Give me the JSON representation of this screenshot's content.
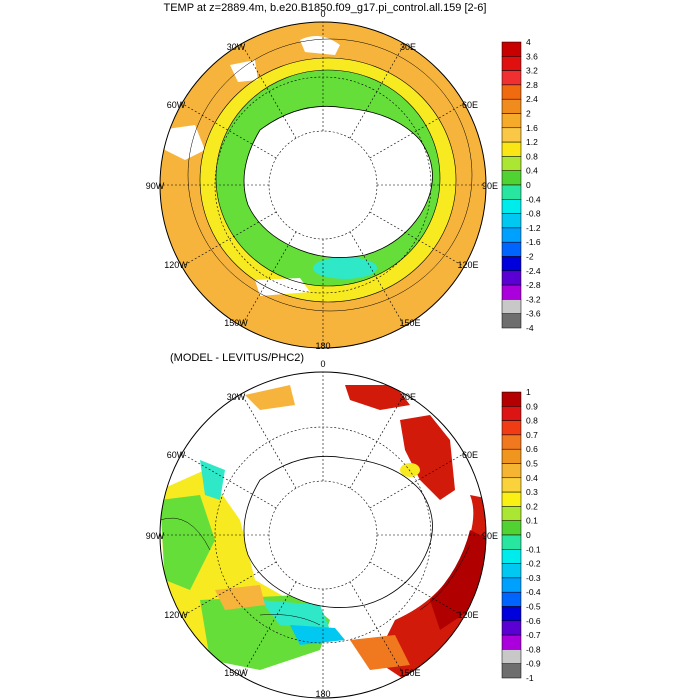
{
  "top_panel": {
    "title": "TEMP at z=2889.4m, b.e20.B1850.f09_g17.pi_control.all.159 [2-6]",
    "lon_labels": {
      "top": "0",
      "tr": "30E",
      "r1": "60E",
      "right": "90E",
      "r2": "120E",
      "br": "150E",
      "bottom": "180",
      "bl": "150W",
      "l2": "120W",
      "left": "90W",
      "l1": "60W",
      "tl": "30W"
    },
    "colorbar": {
      "labels": [
        "4",
        "3.6",
        "3.2",
        "2.8",
        "2.4",
        "2",
        "1.6",
        "1.2",
        "0.8",
        "0.4",
        "0",
        "-0.4",
        "-0.8",
        "-1.2",
        "-1.6",
        "-2",
        "-2.4",
        "-2.8",
        "-3.2",
        "-3.6",
        "-4"
      ],
      "colors": [
        "#c80000",
        "#e01010",
        "#f03030",
        "#f06a10",
        "#f08c1e",
        "#f5aa2a",
        "#fac846",
        "#fae614",
        "#aae632",
        "#50d232",
        "#28e6a0",
        "#00ebeb",
        "#00c8f0",
        "#00a0ff",
        "#0064ff",
        "#0000dc",
        "#5a00d2",
        "#aa00dc",
        "#c8c8c8",
        "#6e6e6e"
      ]
    }
  },
  "bottom_panel": {
    "title": "(MODEL - LEVITUS/PHC2)",
    "lon_labels": {
      "top": "0",
      "tr": "30E",
      "r1": "60E",
      "right": "90E",
      "r2": "120E",
      "br": "150E",
      "bottom": "180",
      "bl": "150W",
      "l2": "120W",
      "left": "90W",
      "l1": "60W",
      "tl": "30W"
    },
    "colorbar": {
      "labels": [
        "1",
        "0.9",
        "0.8",
        "0.7",
        "0.6",
        "0.5",
        "0.4",
        "0.3",
        "0.2",
        "0.1",
        "0",
        "-0.1",
        "-0.2",
        "-0.3",
        "-0.4",
        "-0.5",
        "-0.6",
        "-0.7",
        "-0.8",
        "-0.9",
        "-1"
      ],
      "colors": [
        "#b40000",
        "#dc1414",
        "#f03c14",
        "#f0781e",
        "#f0961e",
        "#f5b432",
        "#fad23c",
        "#faf014",
        "#aae632",
        "#50d232",
        "#28e6a0",
        "#00ebeb",
        "#00c8f0",
        "#00a0ff",
        "#0064ff",
        "#0000dc",
        "#5a00d2",
        "#aa00dc",
        "#c8c8c8",
        "#6e6e6e"
      ]
    }
  },
  "colors": {
    "land": "#ffffff",
    "orange": "#f7b43c",
    "light_orange": "#f8c25a",
    "yellow": "#f7ea20",
    "green": "#66de3a",
    "cyan": "#2ee8c8",
    "red": "#d21a0a",
    "dark_red": "#b00000"
  }
}
